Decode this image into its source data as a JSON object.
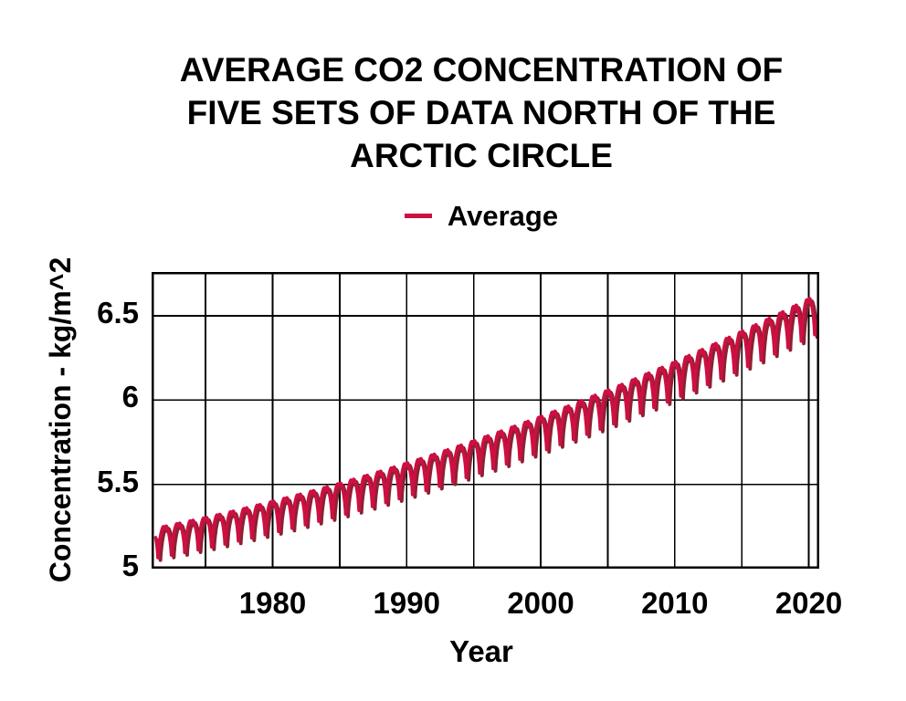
{
  "page": {
    "background": "#ffffff",
    "text_color": "#000000"
  },
  "title": {
    "lines": [
      "AVERAGE CO2 CONCENTRATION OF",
      "FIVE SETS OF DATA NORTH OF THE",
      "ARCTIC CIRCLE"
    ]
  },
  "legend": {
    "label": "Average",
    "swatch_color": "#cd0f41"
  },
  "axes": {
    "x": {
      "label": "Year",
      "ticks": [
        "1980",
        "1990",
        "2000",
        "2010",
        "2020"
      ],
      "tick_values": [
        1980,
        1990,
        2000,
        2010,
        2020
      ],
      "grid_start": 1975,
      "grid_step": 5
    },
    "y": {
      "label": "Concentration - kg/m^2",
      "ticks": [
        "5",
        "5.5",
        "6",
        "6.5"
      ],
      "tick_values": [
        5,
        5.5,
        6,
        6.5
      ]
    }
  },
  "chart_data": {
    "type": "line",
    "title": "AVERAGE CO2 CONCENTRATION OF FIVE SETS OF DATA NORTH OF THE ARCTIC CIRCLE",
    "xlabel": "Year",
    "ylabel": "Concentration - kg/m^2",
    "xlim": [
      1970.97,
      2020.78
    ],
    "ylim": [
      5,
      6.76
    ],
    "grid": true,
    "grid_color": "#000000",
    "frame_color": "#000000",
    "legend_position": "top-center",
    "series": [
      {
        "name": "Average",
        "type": "line",
        "color": "#cd0f41",
        "shadow_color": "#8c2134",
        "start_year": 1971.28,
        "end_year": 2020.52,
        "seasonal_cycle": {
          "period_years": 1,
          "trough_phase": 0.45,
          "trough_sharpness_exponent": 0.55,
          "top_notch_depth": 0.22,
          "top_notch_sigma": 0.05
        },
        "annual_envelope": {
          "first_year": 1971,
          "min": [
            5.032,
            5.048,
            5.063,
            5.079,
            5.096,
            5.113,
            5.131,
            5.149,
            5.168,
            5.187,
            5.206,
            5.226,
            5.247,
            5.268,
            5.289,
            5.311,
            5.334,
            5.357,
            5.38,
            5.404,
            5.428,
            5.453,
            5.479,
            5.505,
            5.531,
            5.558,
            5.585,
            5.613,
            5.641,
            5.67,
            5.699,
            5.729,
            5.76,
            5.79,
            5.821,
            5.853,
            5.885,
            5.918,
            5.951,
            5.985,
            6.019,
            6.054,
            6.089,
            6.124,
            6.16,
            6.197,
            6.234,
            6.271,
            6.31,
            6.348
          ],
          "max": [
            5.253,
            5.27,
            5.287,
            5.304,
            5.322,
            5.34,
            5.359,
            5.379,
            5.399,
            5.419,
            5.44,
            5.461,
            5.483,
            5.505,
            5.528,
            5.551,
            5.575,
            5.599,
            5.624,
            5.649,
            5.675,
            5.701,
            5.728,
            5.755,
            5.783,
            5.811,
            5.84,
            5.869,
            5.898,
            5.929,
            5.959,
            5.99,
            6.022,
            6.054,
            6.086,
            6.119,
            6.153,
            6.187,
            6.221,
            6.256,
            6.292,
            6.328,
            6.364,
            6.401,
            6.438,
            6.476,
            6.514,
            6.553,
            6.593,
            6.632
          ]
        }
      }
    ]
  }
}
